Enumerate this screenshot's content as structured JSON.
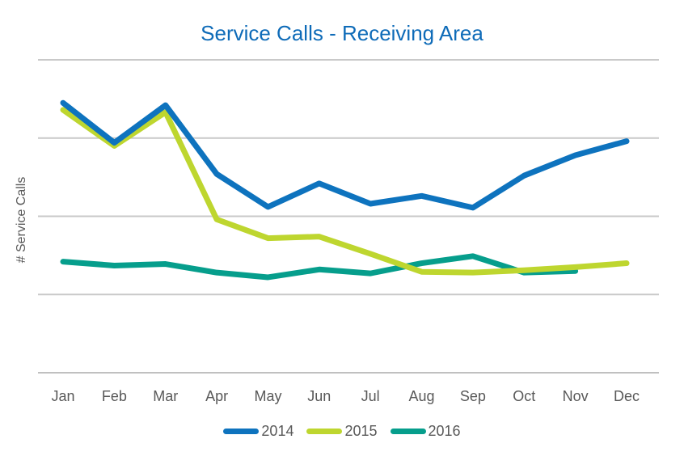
{
  "title": {
    "text": "Service Calls - Receiving Area",
    "color": "#0E6BB8"
  },
  "styles": {
    "text_gray": "#595959",
    "gridline_color": "#C9C9C9",
    "axis_line_color": "#C0C0C0",
    "background": "#FFFFFF"
  },
  "chart_data": {
    "type": "line",
    "title": "Service Calls - Receiving Area",
    "xlabel": "",
    "ylabel": "# Service Calls",
    "categories": [
      "Jan",
      "Feb",
      "Mar",
      "Apr",
      "May",
      "Jun",
      "Jul",
      "Aug",
      "Sep",
      "Oct",
      "Nov",
      "Dec"
    ],
    "series": [
      {
        "name": "2014",
        "color": "#0E73BE",
        "values": [
          3.45,
          2.94,
          3.42,
          2.54,
          2.12,
          2.42,
          2.16,
          2.26,
          2.11,
          2.52,
          2.78,
          2.96
        ]
      },
      {
        "name": "2015",
        "color": "#BED62F",
        "values": [
          3.36,
          2.9,
          3.33,
          1.96,
          1.72,
          1.74,
          1.52,
          1.29,
          1.28,
          1.31,
          1.35,
          1.4
        ]
      },
      {
        "name": "2016",
        "color": "#069E8C",
        "values": [
          1.42,
          1.37,
          1.39,
          1.28,
          1.22,
          1.32,
          1.27,
          1.4,
          1.49,
          1.28,
          1.3,
          null
        ]
      }
    ],
    "ylim": [
      0,
      4
    ],
    "value_units": "relative-gridline-units",
    "y_tick_labels_visible": false,
    "gridlines": "horizontal",
    "gridline_count": 4,
    "legend": {
      "position": "bottom",
      "entries": [
        "2014",
        "2015",
        "2016"
      ]
    }
  }
}
